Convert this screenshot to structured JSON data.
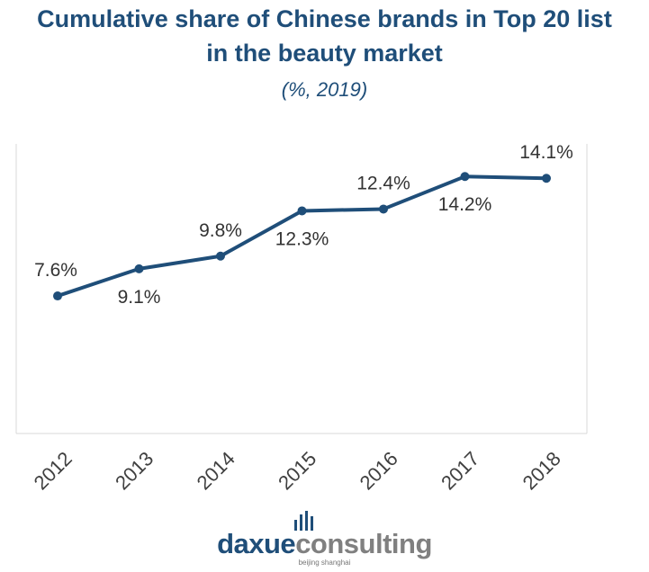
{
  "chart_data": {
    "type": "line",
    "title_line1": "Cumulative share of Chinese brands in Top 20 list",
    "title_line2": "in the beauty market",
    "subtitle": "(%, 2019)",
    "categories": [
      "2012",
      "2013",
      "2014",
      "2015",
      "2016",
      "2017",
      "2018"
    ],
    "values": [
      7.6,
      9.1,
      9.8,
      12.3,
      12.4,
      14.2,
      14.1
    ],
    "data_labels": [
      "7.6%",
      "9.1%",
      "9.8%",
      "12.3%",
      "12.4%",
      "14.2%",
      "14.1%"
    ],
    "xlabel": "",
    "ylabel": "",
    "ylim": [
      0,
      16
    ],
    "grid": false,
    "legend": "none",
    "line_color": "#1f4e79"
  },
  "brand": {
    "name_part1": "daxue",
    "name_part2": "consulting",
    "tagline": "beijing shanghai",
    "icon": "bar-chart-icon"
  }
}
